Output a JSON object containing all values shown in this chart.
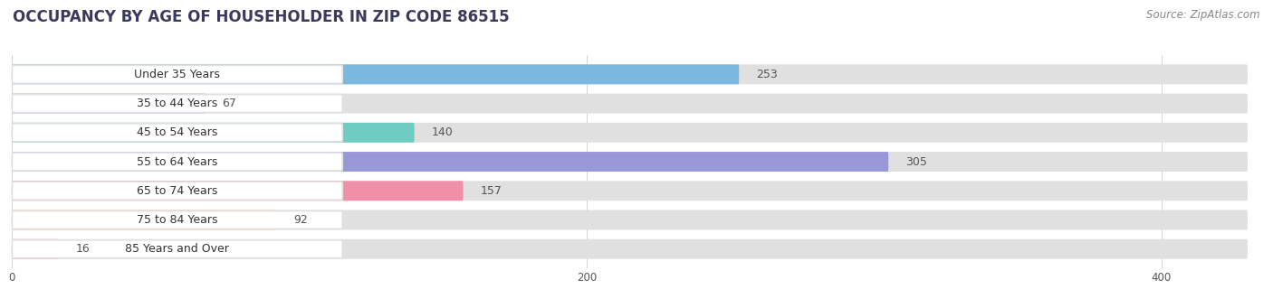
{
  "title": "OCCUPANCY BY AGE OF HOUSEHOLDER IN ZIP CODE 86515",
  "source": "Source: ZipAtlas.com",
  "categories": [
    "Under 35 Years",
    "35 to 44 Years",
    "45 to 54 Years",
    "55 to 64 Years",
    "65 to 74 Years",
    "75 to 84 Years",
    "85 Years and Over"
  ],
  "values": [
    253,
    67,
    140,
    305,
    157,
    92,
    16
  ],
  "bar_colors": [
    "#7ab8e0",
    "#c4a8d4",
    "#6eccc0",
    "#9898d8",
    "#f090a8",
    "#f8c890",
    "#f4b0b0"
  ],
  "xlim_max": 430,
  "xticks": [
    0,
    200,
    400
  ],
  "bar_height": 0.68,
  "bg_bar_color": "#e0e0e0",
  "figure_bg": "#ffffff",
  "axes_bg": "#ffffff",
  "title_fontsize": 12,
  "label_fontsize": 9,
  "value_fontsize": 9,
  "source_fontsize": 8.5,
  "title_color": "#3a3a5c",
  "label_color": "#333333",
  "value_color": "#555555",
  "source_color": "#888888"
}
